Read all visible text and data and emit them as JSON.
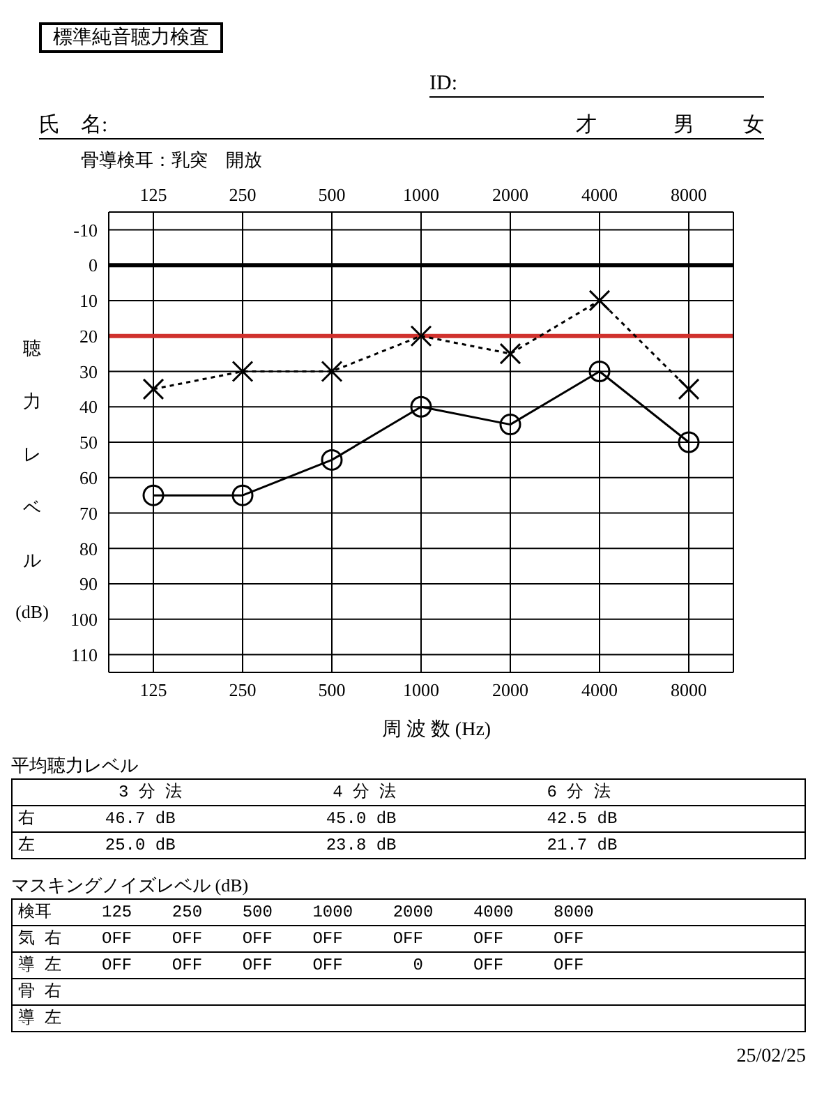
{
  "chart_data": {
    "type": "line",
    "title": "標準純音聴力検査",
    "subtitle": "骨導検耳：乳突　開放",
    "xlabel": "周 波 数 (Hz)",
    "ylabel": "聴力レベル (dB)",
    "categories": [
      "125",
      "250",
      "500",
      "1000",
      "2000",
      "4000",
      "8000"
    ],
    "series": [
      {
        "color": "#000000",
        "marker": "circle",
        "line_style": "solid",
        "values": [
          65,
          65,
          55,
          40,
          45,
          30,
          50
        ]
      },
      {
        "color": "#000000",
        "marker": "cross",
        "line_style": "dotted",
        "values": [
          35,
          30,
          30,
          20,
          25,
          10,
          35
        ]
      }
    ],
    "ylim": [
      115,
      -15
    ],
    "yticks": [
      -10,
      0,
      10,
      20,
      30,
      40,
      50,
      60,
      70,
      80,
      90,
      100,
      110
    ],
    "grid": true,
    "legend": false,
    "ref_lines": [
      {
        "axis": "y",
        "value": 0,
        "color": "#000000"
      },
      {
        "axis": "y",
        "value": 20,
        "color": "#d0312d"
      }
    ],
    "annotations": [
      "ID:",
      "氏　名:",
      "才",
      "男",
      "女",
      "平均聴力レベル",
      "          3 分 法               4 分 法               6 分 法",
      "右       46.7 dB               45.0 dB               42.5 dB",
      "左       25.0 dB               23.8 dB               21.7 dB",
      "マスキングノイズレベル (dB)",
      "検耳     125    250    500    1000    2000    4000    8000",
      "気 右    OFF    OFF    OFF    OFF     OFF     OFF     OFF",
      "導 左    OFF    OFF    OFF    OFF       0     OFF     OFF",
      "骨 右",
      "導 左",
      "25/02/25"
    ]
  }
}
